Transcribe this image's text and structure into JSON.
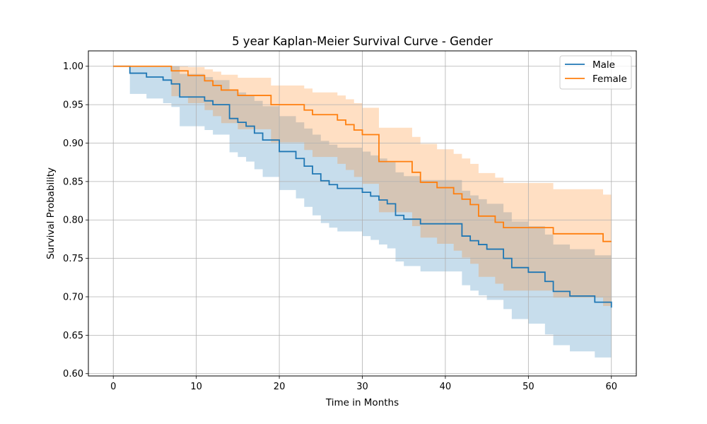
{
  "chart_data": {
    "type": "line",
    "title": "5 year Kaplan-Meier Survival Curve - Gender",
    "xlabel": "Time in Months",
    "ylabel": "Survival Probability",
    "xlim": [
      -3,
      63
    ],
    "ylim": [
      0.597,
      1.02
    ],
    "xticks": [
      0,
      10,
      20,
      30,
      40,
      50,
      60
    ],
    "yticks": [
      0.6,
      0.65,
      0.7,
      0.75,
      0.8,
      0.85,
      0.9,
      0.95,
      1.0
    ],
    "ytick_labels": [
      "0.60",
      "0.65",
      "0.70",
      "0.75",
      "0.80",
      "0.85",
      "0.90",
      "0.95",
      "1.00"
    ],
    "grid": true,
    "legend_position": "top-right",
    "series": [
      {
        "name": "Male",
        "color": "#1f77b4",
        "step": [
          [
            0,
            1.0
          ],
          [
            2,
            0.991
          ],
          [
            4,
            0.986
          ],
          [
            6,
            0.982
          ],
          [
            7,
            0.977
          ],
          [
            8,
            0.96
          ],
          [
            11,
            0.955
          ],
          [
            12,
            0.95
          ],
          [
            14,
            0.932
          ],
          [
            15,
            0.927
          ],
          [
            16,
            0.922
          ],
          [
            17,
            0.913
          ],
          [
            18,
            0.904
          ],
          [
            20,
            0.889
          ],
          [
            22,
            0.88
          ],
          [
            23,
            0.87
          ],
          [
            24,
            0.86
          ],
          [
            25,
            0.851
          ],
          [
            26,
            0.846
          ],
          [
            27,
            0.841
          ],
          [
            30,
            0.836
          ],
          [
            31,
            0.831
          ],
          [
            32,
            0.826
          ],
          [
            33,
            0.821
          ],
          [
            34,
            0.806
          ],
          [
            35,
            0.801
          ],
          [
            37,
            0.795
          ],
          [
            42,
            0.779
          ],
          [
            43,
            0.773
          ],
          [
            44,
            0.768
          ],
          [
            45,
            0.762
          ],
          [
            47,
            0.75
          ],
          [
            48,
            0.738
          ],
          [
            50,
            0.732
          ],
          [
            52,
            0.72
          ],
          [
            53,
            0.707
          ],
          [
            55,
            0.701
          ],
          [
            58,
            0.693
          ],
          [
            60,
            0.686
          ]
        ],
        "ci_upper": [
          [
            0,
            1.0
          ],
          [
            2,
            1.0
          ],
          [
            8,
            0.99
          ],
          [
            11,
            0.986
          ],
          [
            12,
            0.982
          ],
          [
            14,
            0.97
          ],
          [
            15,
            0.966
          ],
          [
            16,
            0.962
          ],
          [
            17,
            0.955
          ],
          [
            18,
            0.948
          ],
          [
            20,
            0.935
          ],
          [
            22,
            0.927
          ],
          [
            23,
            0.919
          ],
          [
            24,
            0.911
          ],
          [
            25,
            0.903
          ],
          [
            26,
            0.898
          ],
          [
            27,
            0.894
          ],
          [
            30,
            0.889
          ],
          [
            31,
            0.884
          ],
          [
            32,
            0.88
          ],
          [
            33,
            0.875
          ],
          [
            34,
            0.862
          ],
          [
            35,
            0.857
          ],
          [
            37,
            0.852
          ],
          [
            42,
            0.838
          ],
          [
            43,
            0.832
          ],
          [
            44,
            0.827
          ],
          [
            45,
            0.821
          ],
          [
            47,
            0.81
          ],
          [
            48,
            0.798
          ],
          [
            50,
            0.792
          ],
          [
            52,
            0.781
          ],
          [
            53,
            0.768
          ],
          [
            55,
            0.762
          ],
          [
            58,
            0.754
          ],
          [
            60,
            0.752
          ]
        ],
        "ci_lower": [
          [
            0,
            1.0
          ],
          [
            2,
            0.964
          ],
          [
            4,
            0.958
          ],
          [
            6,
            0.952
          ],
          [
            7,
            0.947
          ],
          [
            8,
            0.922
          ],
          [
            11,
            0.917
          ],
          [
            12,
            0.911
          ],
          [
            14,
            0.888
          ],
          [
            15,
            0.882
          ],
          [
            16,
            0.876
          ],
          [
            17,
            0.866
          ],
          [
            18,
            0.856
          ],
          [
            20,
            0.839
          ],
          [
            22,
            0.828
          ],
          [
            23,
            0.817
          ],
          [
            24,
            0.806
          ],
          [
            25,
            0.796
          ],
          [
            26,
            0.79
          ],
          [
            27,
            0.785
          ],
          [
            30,
            0.779
          ],
          [
            31,
            0.774
          ],
          [
            32,
            0.768
          ],
          [
            33,
            0.763
          ],
          [
            34,
            0.746
          ],
          [
            35,
            0.74
          ],
          [
            37,
            0.733
          ],
          [
            42,
            0.715
          ],
          [
            43,
            0.708
          ],
          [
            44,
            0.702
          ],
          [
            45,
            0.696
          ],
          [
            47,
            0.684
          ],
          [
            48,
            0.671
          ],
          [
            50,
            0.665
          ],
          [
            52,
            0.651
          ],
          [
            53,
            0.637
          ],
          [
            55,
            0.629
          ],
          [
            58,
            0.621
          ],
          [
            60,
            0.613
          ]
        ]
      },
      {
        "name": "Female",
        "color": "#ff7f0e",
        "step": [
          [
            0,
            1.0
          ],
          [
            7,
            0.994
          ],
          [
            9,
            0.988
          ],
          [
            11,
            0.981
          ],
          [
            12,
            0.975
          ],
          [
            13,
            0.969
          ],
          [
            15,
            0.962
          ],
          [
            19,
            0.95
          ],
          [
            23,
            0.943
          ],
          [
            24,
            0.937
          ],
          [
            27,
            0.93
          ],
          [
            28,
            0.924
          ],
          [
            29,
            0.917
          ],
          [
            30,
            0.911
          ],
          [
            32,
            0.876
          ],
          [
            36,
            0.862
          ],
          [
            37,
            0.849
          ],
          [
            39,
            0.842
          ],
          [
            41,
            0.834
          ],
          [
            42,
            0.827
          ],
          [
            43,
            0.82
          ],
          [
            44,
            0.805
          ],
          [
            46,
            0.797
          ],
          [
            47,
            0.79
          ],
          [
            53,
            0.782
          ],
          [
            59,
            0.772
          ],
          [
            60,
            0.772
          ]
        ],
        "ci_upper": [
          [
            0,
            1.0
          ],
          [
            9,
            0.999
          ],
          [
            11,
            0.996
          ],
          [
            12,
            0.993
          ],
          [
            13,
            0.989
          ],
          [
            15,
            0.985
          ],
          [
            19,
            0.975
          ],
          [
            23,
            0.971
          ],
          [
            24,
            0.966
          ],
          [
            27,
            0.962
          ],
          [
            28,
            0.957
          ],
          [
            29,
            0.952
          ],
          [
            30,
            0.946
          ],
          [
            32,
            0.92
          ],
          [
            36,
            0.908
          ],
          [
            37,
            0.899
          ],
          [
            39,
            0.892
          ],
          [
            41,
            0.886
          ],
          [
            42,
            0.88
          ],
          [
            43,
            0.873
          ],
          [
            44,
            0.861
          ],
          [
            46,
            0.855
          ],
          [
            47,
            0.848
          ],
          [
            53,
            0.84
          ],
          [
            59,
            0.833
          ],
          [
            60,
            0.833
          ]
        ],
        "ci_lower": [
          [
            0,
            1.0
          ],
          [
            7,
            0.961
          ],
          [
            9,
            0.952
          ],
          [
            11,
            0.943
          ],
          [
            12,
            0.935
          ],
          [
            13,
            0.926
          ],
          [
            15,
            0.918
          ],
          [
            19,
            0.901
          ],
          [
            23,
            0.891
          ],
          [
            24,
            0.882
          ],
          [
            27,
            0.873
          ],
          [
            28,
            0.865
          ],
          [
            29,
            0.856
          ],
          [
            30,
            0.847
          ],
          [
            32,
            0.81
          ],
          [
            36,
            0.792
          ],
          [
            37,
            0.777
          ],
          [
            39,
            0.769
          ],
          [
            41,
            0.76
          ],
          [
            42,
            0.751
          ],
          [
            43,
            0.743
          ],
          [
            44,
            0.726
          ],
          [
            46,
            0.717
          ],
          [
            47,
            0.708
          ],
          [
            53,
            0.699
          ],
          [
            59,
            0.688
          ],
          [
            60,
            0.688
          ]
        ]
      }
    ]
  }
}
